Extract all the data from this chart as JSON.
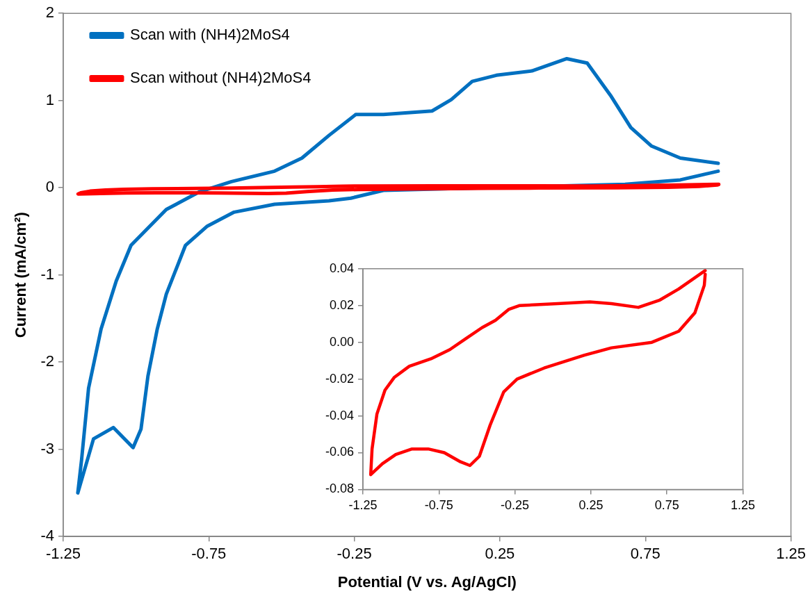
{
  "chart_data": [
    {
      "type": "line",
      "xlabel": "Potential (V vs. Ag/AgCl)",
      "ylabel": "Current (mA/cm²)",
      "xlim": [
        -1.25,
        1.25
      ],
      "xticks": [
        -1.25,
        -0.75,
        -0.25,
        0.25,
        0.75,
        1.25
      ],
      "ylim": [
        -4,
        2
      ],
      "yticks": [
        -4,
        -3,
        -2,
        -1,
        0,
        1,
        2
      ],
      "grid": false,
      "legend": "top left",
      "marker": "none",
      "line_style": "solid",
      "series": [
        {
          "name": "Scan with (NH4)2MoS4",
          "color": "#0070c0",
          "x": [
            1.0,
            0.87,
            0.68,
            -0.15,
            -0.262,
            -0.337,
            -0.524,
            -0.663,
            -0.755,
            -0.83,
            -0.896,
            -0.927,
            -0.959,
            -0.983,
            -1.01,
            -1.078,
            -1.146,
            -1.2,
            -1.187,
            -1.163,
            -1.12,
            -1.068,
            -1.017,
            -0.896,
            -0.784,
            -0.672,
            -0.524,
            -0.43,
            -0.337,
            -0.245,
            -0.15,
            0.017,
            0.083,
            0.155,
            0.238,
            0.36,
            0.48,
            0.55,
            0.63,
            0.7,
            0.77,
            0.87,
            1.0
          ],
          "values": [
            0.19,
            0.09,
            0.04,
            -0.03,
            -0.12,
            -0.15,
            -0.19,
            -0.28,
            -0.44,
            -0.66,
            -1.22,
            -1.62,
            -2.16,
            -2.77,
            -2.98,
            -2.75,
            -2.88,
            -3.5,
            -3.12,
            -2.3,
            -1.62,
            -1.07,
            -0.66,
            -0.25,
            -0.05,
            0.07,
            0.19,
            0.34,
            0.6,
            0.84,
            0.84,
            0.88,
            1.01,
            1.22,
            1.29,
            1.34,
            1.48,
            1.43,
            1.06,
            0.69,
            0.48,
            0.34,
            0.28
          ]
        },
        {
          "name": "Scan without (NH4)2MoS4",
          "color": "#ff0000",
          "x": [
            1.002,
            0.828,
            0.704,
            0.562,
            0.385,
            0.243,
            0.03,
            -0.218,
            -0.289,
            -0.378,
            -0.466,
            -0.573,
            -0.679,
            -0.803,
            -0.945,
            -1.043,
            -1.105,
            -1.158,
            -1.19,
            -1.199,
            -1.122,
            -1.034,
            -0.927,
            -0.821,
            -0.715,
            -0.608,
            -0.546,
            -0.484,
            -0.413,
            -0.324,
            -0.236,
            -0.058,
            0.208,
            0.385,
            0.651,
            0.828,
            0.934,
            0.996,
            1.002
          ],
          "values": [
            0.039,
            0.029,
            0.023,
            0.019,
            0.021,
            0.022,
            0.021,
            0.02,
            0.018,
            0.012,
            0.008,
            0.002,
            -0.004,
            -0.009,
            -0.013,
            -0.019,
            -0.026,
            -0.039,
            -0.058,
            -0.072,
            -0.066,
            -0.061,
            -0.058,
            -0.058,
            -0.06,
            -0.065,
            -0.067,
            -0.062,
            -0.045,
            -0.027,
            -0.02,
            -0.014,
            -0.007,
            -0.003,
            0,
            0.006,
            0.016,
            0.031,
            0.037
          ]
        }
      ]
    },
    {
      "type": "line",
      "xlim": [
        -1.25,
        1.25
      ],
      "xticks": [
        -1.25,
        -0.75,
        -0.25,
        0.25,
        0.75,
        1.25
      ],
      "ylim": [
        -0.08,
        0.04
      ],
      "yticks": [
        {
          "value": -0.08,
          "label": "-0.08"
        },
        {
          "value": -0.06,
          "label": "-0.06"
        },
        {
          "value": -0.04,
          "label": "-0.04"
        },
        {
          "value": -0.02,
          "label": "-0.02"
        },
        {
          "value": 0,
          "label": "0.00"
        },
        {
          "value": 0.02,
          "label": "0.02"
        },
        {
          "value": 0.04,
          "label": "0.04"
        }
      ],
      "grid": false,
      "marker": "none",
      "line_style": "solid",
      "series": [
        {
          "color": "#ff0000",
          "x": [
            1.002,
            0.828,
            0.704,
            0.562,
            0.385,
            0.243,
            0.03,
            -0.218,
            -0.289,
            -0.378,
            -0.466,
            -0.573,
            -0.679,
            -0.803,
            -0.945,
            -1.043,
            -1.105,
            -1.158,
            -1.19,
            -1.199,
            -1.122,
            -1.034,
            -0.927,
            -0.821,
            -0.715,
            -0.608,
            -0.546,
            -0.484,
            -0.413,
            -0.324,
            -0.236,
            -0.058,
            0.208,
            0.385,
            0.651,
            0.828,
            0.934,
            0.996,
            1.002
          ],
          "values": [
            0.039,
            0.029,
            0.023,
            0.019,
            0.021,
            0.022,
            0.021,
            0.02,
            0.018,
            0.012,
            0.008,
            0.002,
            -0.004,
            -0.009,
            -0.013,
            -0.019,
            -0.026,
            -0.039,
            -0.058,
            -0.072,
            -0.066,
            -0.061,
            -0.058,
            -0.058,
            -0.06,
            -0.065,
            -0.067,
            -0.062,
            -0.045,
            -0.027,
            -0.02,
            -0.014,
            -0.007,
            -0.003,
            0,
            0.006,
            0.016,
            0.031,
            0.037
          ]
        }
      ]
    }
  ]
}
